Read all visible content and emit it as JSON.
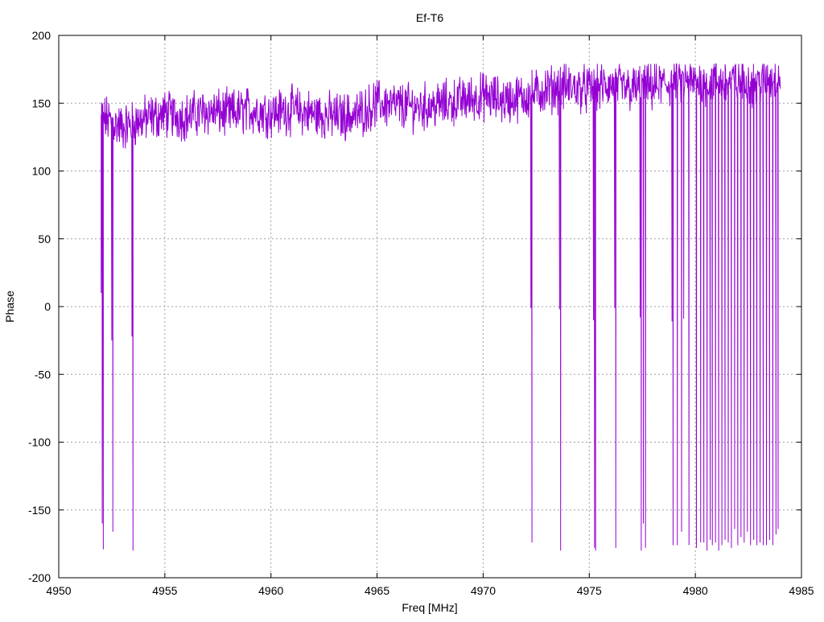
{
  "chart_data": {
    "type": "line",
    "title": "Ef-T6",
    "xlabel": "Freq [MHz]",
    "ylabel": "Phase",
    "xlim": [
      4950,
      4985
    ],
    "ylim": [
      -200,
      200
    ],
    "xticks": [
      4950,
      4955,
      4960,
      4965,
      4970,
      4975,
      4980,
      4985
    ],
    "yticks": [
      -200,
      -150,
      -100,
      -50,
      0,
      50,
      100,
      150,
      200
    ],
    "grid": true,
    "legend": "none",
    "line_color": "#9400d3",
    "series": [
      {
        "x_start": 4952.0,
        "x_end": 4984.0,
        "baseline": [
          [
            4952.0,
            140
          ],
          [
            4953.0,
            132
          ],
          [
            4954.0,
            138
          ],
          [
            4955.0,
            142
          ],
          [
            4956.0,
            140
          ],
          [
            4957.0,
            144
          ],
          [
            4958.0,
            142
          ],
          [
            4959.0,
            145
          ],
          [
            4960.0,
            143
          ],
          [
            4961.0,
            145
          ],
          [
            4962.0,
            142
          ],
          [
            4963.0,
            140
          ],
          [
            4964.0,
            141
          ],
          [
            4965.0,
            150
          ],
          [
            4966.0,
            148
          ],
          [
            4967.0,
            147
          ],
          [
            4968.0,
            149
          ],
          [
            4969.0,
            152
          ],
          [
            4970.0,
            155
          ],
          [
            4971.0,
            152
          ],
          [
            4972.0,
            155
          ],
          [
            4973.0,
            160
          ],
          [
            4974.0,
            162
          ],
          [
            4975.0,
            160
          ],
          [
            4976.0,
            163
          ],
          [
            4977.0,
            160
          ],
          [
            4978.0,
            162
          ],
          [
            4979.0,
            165
          ],
          [
            4980.0,
            165
          ],
          [
            4981.0,
            166
          ],
          [
            4982.0,
            166
          ],
          [
            4983.0,
            165
          ],
          [
            4984.0,
            170
          ]
        ],
        "noise_amplitude": 14,
        "dips": [
          [
            4952.0,
            10
          ],
          [
            4952.05,
            -160
          ],
          [
            4952.1,
            -179
          ],
          [
            4952.5,
            -25
          ],
          [
            4952.55,
            -166
          ],
          [
            4953.45,
            -22
          ],
          [
            4953.5,
            -180
          ],
          [
            4972.25,
            -1
          ],
          [
            4972.3,
            -174
          ],
          [
            4973.6,
            -2
          ],
          [
            4973.65,
            -180
          ],
          [
            4975.2,
            -10
          ],
          [
            4975.25,
            -178
          ],
          [
            4975.3,
            -180
          ],
          [
            4976.2,
            -1
          ],
          [
            4976.25,
            -178
          ],
          [
            4977.4,
            -8
          ],
          [
            4977.45,
            -180
          ],
          [
            4977.55,
            -160
          ],
          [
            4977.65,
            -178
          ],
          [
            4978.9,
            -11
          ],
          [
            4978.95,
            -176
          ],
          [
            4979.15,
            -176
          ],
          [
            4979.35,
            -166
          ],
          [
            4979.45,
            -9
          ],
          [
            4979.7,
            -176
          ],
          [
            4980.05,
            -178
          ],
          [
            4980.25,
            -174
          ],
          [
            4980.4,
            -174
          ],
          [
            4980.55,
            -180
          ],
          [
            4980.7,
            -172
          ],
          [
            4980.8,
            -176
          ],
          [
            4980.95,
            -174
          ],
          [
            4981.1,
            -180
          ],
          [
            4981.25,
            -176
          ],
          [
            4981.4,
            -172
          ],
          [
            4981.55,
            -174
          ],
          [
            4981.7,
            -178
          ],
          [
            4981.85,
            -164
          ],
          [
            4982.0,
            -176
          ],
          [
            4982.15,
            -170
          ],
          [
            4982.3,
            -174
          ],
          [
            4982.45,
            -166
          ],
          [
            4982.6,
            -176
          ],
          [
            4982.75,
            -172
          ],
          [
            4982.9,
            -176
          ],
          [
            4983.05,
            -174
          ],
          [
            4983.2,
            -176
          ],
          [
            4983.35,
            -176
          ],
          [
            4983.5,
            -172
          ],
          [
            4983.65,
            -176
          ],
          [
            4983.8,
            -168
          ],
          [
            4983.9,
            -164
          ]
        ]
      }
    ]
  }
}
